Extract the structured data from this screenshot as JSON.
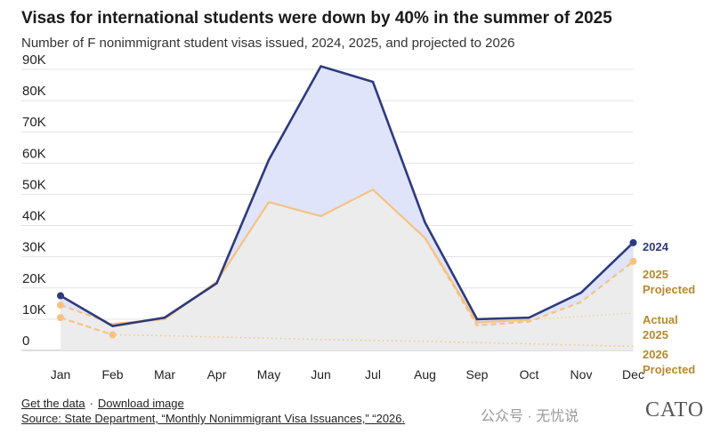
{
  "header": {
    "title": "Visas for international students were down by 40% in the summer of 2025",
    "subtitle": "Number of F nonimmigrant student visas issued, 2024, 2025, and projected to 2026"
  },
  "footer": {
    "get_data": "Get the data",
    "separator": "·",
    "download": "Download image",
    "source": "Source: State Department, “Monthly Nonimmigrant Visa Issuances,” “2026."
  },
  "watermark": {
    "text": "公众号 · 无忧说",
    "logo": "CATO"
  },
  "colors": {
    "series_2024": "#2e3a7c",
    "fill_2024": "#dfe4fa",
    "series_2025": "#f7c27f",
    "fill_2025": "#ececec",
    "label_2025": "#b8892e"
  },
  "chart_data": {
    "type": "area",
    "categories": [
      "Jan",
      "Feb",
      "Mar",
      "Apr",
      "May",
      "Jun",
      "Jul",
      "Aug",
      "Sep",
      "Oct",
      "Nov",
      "Dec"
    ],
    "ylim": [
      0,
      90000
    ],
    "yticks": [
      {
        "value": 0,
        "label": "0"
      },
      {
        "value": 10000,
        "label": "10K"
      },
      {
        "value": 20000,
        "label": "20K"
      },
      {
        "value": 30000,
        "label": "30K"
      },
      {
        "value": 40000,
        "label": "40K"
      },
      {
        "value": 50000,
        "label": "50K"
      },
      {
        "value": 60000,
        "label": "60K"
      },
      {
        "value": 70000,
        "label": "70K"
      },
      {
        "value": 80000,
        "label": "80K"
      },
      {
        "value": 90000,
        "label": "90K"
      }
    ],
    "grid": true,
    "series": [
      {
        "name": "2024",
        "label_lines": [
          "2024"
        ],
        "style": "solid",
        "values": [
          17500,
          7800,
          10500,
          21500,
          61000,
          91000,
          86000,
          41000,
          10000,
          10500,
          18500,
          34500
        ]
      },
      {
        "name": "2025 Actual",
        "label_lines": [
          "Actual",
          "2025"
        ],
        "style": "solid",
        "values": [
          14500,
          8500,
          10000,
          22000,
          47500,
          43000,
          51500,
          36000,
          9000,
          9800,
          null,
          null
        ]
      },
      {
        "name": "2025 Projected",
        "label_lines": [
          "2025",
          "Projected"
        ],
        "style": "dashed",
        "values": [
          14500,
          8500,
          10000,
          22000,
          47500,
          43000,
          51500,
          36000,
          8000,
          9200,
          15500,
          28500
        ]
      },
      {
        "name": "2026 Projected",
        "label_lines": [
          "2026",
          "Projected"
        ],
        "style": "dotted",
        "values": [
          10500,
          5000,
          4700,
          4300,
          3900,
          3500,
          3200,
          2900,
          2500,
          2100,
          1700,
          1300
        ]
      }
    ],
    "actual_extension": {
      "from_month": "Sep",
      "values": [
        9000,
        9800,
        10900,
        12000
      ]
    }
  }
}
